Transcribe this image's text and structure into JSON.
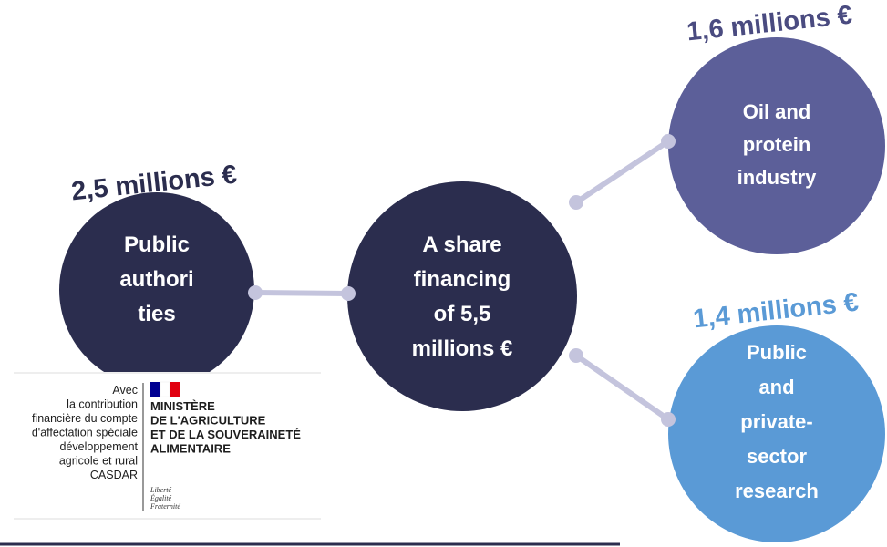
{
  "nodes": [
    {
      "amount": "2,5 millions €",
      "label": [
        "Public",
        "authori",
        "ties"
      ]
    },
    {
      "label": [
        "A share",
        "financing",
        "of 5,5",
        "millions €"
      ]
    },
    {
      "amount": "1,6 millions €",
      "label": [
        "Oil and",
        "protein",
        "industry"
      ]
    },
    {
      "amount": "1,4 millions €",
      "label": [
        "Public",
        "and",
        "private-",
        "sector",
        "research"
      ]
    }
  ],
  "logo": {
    "left": [
      "Avec",
      "la contribution",
      "financière du compte",
      "d'affectation spéciale",
      "développement",
      "agricole et rural",
      "CASDAR"
    ],
    "ministry": [
      "MINISTÈRE",
      "DE L'AGRICULTURE",
      "ET DE LA SOUVERAINETÉ",
      "ALIMENTAIRE"
    ],
    "motto": [
      "Liberté",
      "Égalité",
      "Fraternité"
    ]
  }
}
